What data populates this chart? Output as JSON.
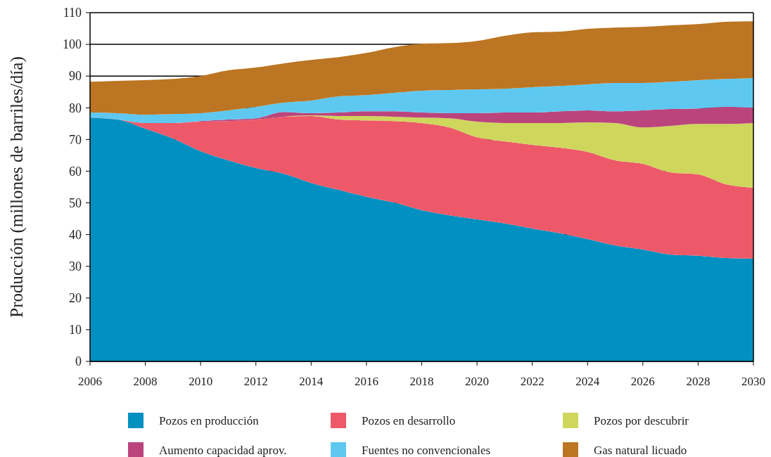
{
  "chart_data": {
    "type": "area",
    "stacked": true,
    "ylabel": "Producción (millones de barriles/día)",
    "x": [
      2006,
      2007,
      2008,
      2009,
      2010,
      2011,
      2012,
      2013,
      2014,
      2015,
      2016,
      2017,
      2018,
      2019,
      2020,
      2021,
      2022,
      2023,
      2024,
      2025,
      2026,
      2027,
      2028,
      2029,
      2030
    ],
    "xlim": [
      2006,
      2030
    ],
    "xticks": [
      2006,
      2008,
      2010,
      2012,
      2014,
      2016,
      2018,
      2020,
      2022,
      2024,
      2026,
      2028,
      2030
    ],
    "ylim": [
      0,
      110
    ],
    "yticks": [
      0,
      10,
      20,
      30,
      40,
      50,
      60,
      70,
      80,
      90,
      100,
      110
    ],
    "grid": "y",
    "legend": "bottom",
    "series": [
      {
        "name": "Pozos en producción",
        "color": "#0290c1",
        "values": [
          76.9,
          76.3,
          73.4,
          70.3,
          66.3,
          63.4,
          61,
          59.2,
          56.3,
          54.1,
          51.9,
          50.1,
          47.7,
          46.1,
          44.8,
          43.5,
          41.9,
          40.4,
          38.6,
          36.6,
          35.3,
          33.7,
          33.3,
          32.6,
          32.4
        ]
      },
      {
        "name": "Pozos en desarrollo",
        "color": "#ed5969",
        "values": [
          0,
          0,
          1.8,
          4.9,
          9.3,
          12.4,
          15.3,
          18,
          21.1,
          22.2,
          24.1,
          25.7,
          27.5,
          27.7,
          25.9,
          25.9,
          26.4,
          27,
          27.5,
          26.8,
          27,
          25.9,
          25.7,
          23.3,
          22.4
        ]
      },
      {
        "name": "Pozos por descubrir",
        "color": "#cfd65c",
        "values": [
          0,
          0,
          0,
          0,
          0,
          0,
          0,
          0,
          0.2,
          1.1,
          1.4,
          1.4,
          1.7,
          2.9,
          4.9,
          5.8,
          6.9,
          7.8,
          9.3,
          11.8,
          11.5,
          14.7,
          15.9,
          19,
          20.4
        ]
      },
      {
        "name": "Aumento capacidad aprov.",
        "color": "#bb447d",
        "values": [
          0,
          0,
          0,
          0,
          0.2,
          0.5,
          0.4,
          1.5,
          0.7,
          1.1,
          1.5,
          1.7,
          1.6,
          1.6,
          2.7,
          3.3,
          3.3,
          3.7,
          3.8,
          3.7,
          5.4,
          5.3,
          4.9,
          5.4,
          4.8
        ]
      },
      {
        "name": "Fuentes no convencionales",
        "color": "#5ec8f0",
        "values": [
          1.6,
          2,
          2.6,
          2.8,
          2.5,
          2.9,
          3.6,
          2.9,
          4,
          5.1,
          5.1,
          5.8,
          6.9,
          7.3,
          7.5,
          7.5,
          8,
          8,
          8.2,
          8.9,
          8.6,
          8.6,
          8.9,
          8.8,
          9.4
        ]
      },
      {
        "name": "Gas natural licuado",
        "color": "#bc7522",
        "values": [
          9.7,
          10.2,
          10.9,
          11.1,
          11.7,
          12.6,
          12.4,
          12.4,
          12.8,
          12.4,
          13.3,
          14.4,
          14.8,
          14.8,
          15.3,
          16.7,
          17.3,
          17.1,
          17.5,
          17.5,
          17.7,
          17.8,
          17.7,
          18,
          17.9
        ]
      }
    ]
  }
}
